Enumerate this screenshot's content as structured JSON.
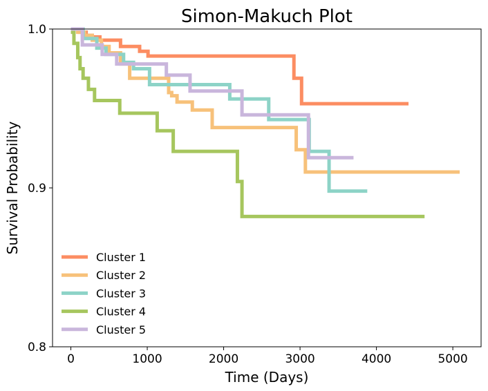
{
  "chart_data": {
    "type": "line",
    "step": true,
    "title": "Simon-Makuch Plot",
    "xlabel": "Time (Days)",
    "ylabel": "Survival Probability",
    "xlim": [
      -240,
      5370
    ],
    "ylim": [
      0.8,
      1.0
    ],
    "x_ticks": [
      0,
      1000,
      2000,
      3000,
      4000,
      5000
    ],
    "y_ticks": [
      0.8,
      0.9,
      1.0
    ],
    "x_tick_labels": [
      "0",
      "1000",
      "2000",
      "3000",
      "4000",
      "5000"
    ],
    "y_tick_labels": [
      "0.8",
      "0.9",
      "1.0"
    ],
    "grid": false,
    "legend_position": "lower-left",
    "series": [
      {
        "name": "Cluster 1",
        "color": "#fc8d62",
        "x": [
          0,
          110,
          200,
          280,
          380,
          650,
          900,
          1010,
          2920,
          3020,
          4420
        ],
        "y": [
          1.0,
          0.998,
          0.996,
          0.995,
          0.993,
          0.989,
          0.986,
          0.983,
          0.969,
          0.953,
          0.953
        ]
      },
      {
        "name": "Cluster 2",
        "color": "#f7c17a",
        "x": [
          0,
          90,
          180,
          280,
          400,
          500,
          650,
          770,
          1280,
          1320,
          1390,
          1590,
          1850,
          2950,
          3070,
          5090
        ],
        "y": [
          1.0,
          0.998,
          0.996,
          0.993,
          0.989,
          0.985,
          0.978,
          0.969,
          0.96,
          0.958,
          0.954,
          0.949,
          0.938,
          0.924,
          0.91,
          0.91
        ]
      },
      {
        "name": "Cluster 3",
        "color": "#8dd3c7",
        "x": [
          0,
          160,
          340,
          460,
          690,
          820,
          1030,
          2080,
          2590,
          3120,
          3380,
          3880
        ],
        "y": [
          1.0,
          0.994,
          0.988,
          0.984,
          0.979,
          0.975,
          0.965,
          0.956,
          0.943,
          0.923,
          0.898,
          0.898
        ]
      },
      {
        "name": "Cluster 4",
        "color": "#a6c65e",
        "x": [
          0,
          40,
          90,
          120,
          160,
          230,
          310,
          640,
          1130,
          1340,
          2180,
          2240,
          4630
        ],
        "y": [
          0.998,
          0.991,
          0.982,
          0.975,
          0.969,
          0.962,
          0.955,
          0.947,
          0.936,
          0.923,
          0.904,
          0.882,
          0.882
        ]
      },
      {
        "name": "Cluster 5",
        "color": "#c9b6dc",
        "x": [
          0,
          150,
          410,
          600,
          1250,
          1560,
          2240,
          3110,
          3700
        ],
        "y": [
          1.0,
          0.99,
          0.984,
          0.978,
          0.971,
          0.961,
          0.946,
          0.919,
          0.919
        ]
      }
    ]
  }
}
